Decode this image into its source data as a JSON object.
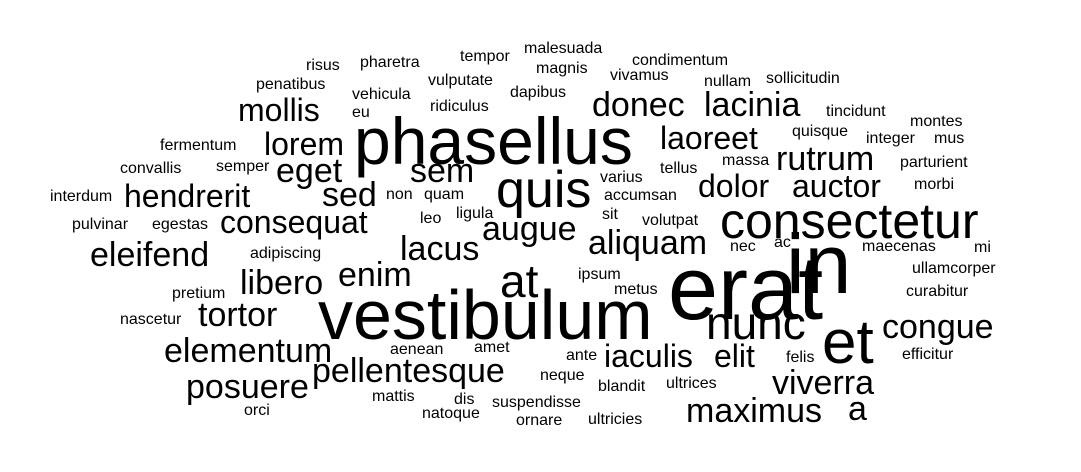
{
  "word_cloud": {
    "text_color": "#000000",
    "background_color": "#ffffff",
    "words": [
      "erat",
      "in",
      "vestibulum",
      "phasellus",
      "et",
      "consectetur",
      "nunc",
      "quis",
      "at",
      "aliquam",
      "hendrerit",
      "consequat",
      "mollis",
      "donec",
      "lacinia",
      "maximus",
      "viverra",
      "posuere",
      "pellentesque",
      "congue",
      "elementum",
      "eleifend",
      "tortor",
      "libero",
      "rutrum",
      "laoreet",
      "dolor",
      "auctor",
      "lorem",
      "eget",
      "sed",
      "sem",
      "augue",
      "lacus",
      "enim",
      "iaculis",
      "elit",
      "a",
      "risus",
      "pharetra",
      "tempor",
      "malesuada",
      "magnis",
      "condimentum",
      "vivamus",
      "nullam",
      "sollicitudin",
      "penatibus",
      "vehicula",
      "vulputate",
      "dapibus",
      "ridiculus",
      "eu",
      "fermentum",
      "convallis",
      "semper",
      "interdum",
      "non",
      "quam",
      "pulvinar",
      "egestas",
      "leo",
      "ligula",
      "adipiscing",
      "pretium",
      "nascetur",
      "ipsum",
      "metus",
      "nec",
      "ac",
      "maecenas",
      "mi",
      "ullamcorper",
      "curabitur",
      "efficitur",
      "felis",
      "ante",
      "aenean",
      "amet",
      "neque",
      "blandit",
      "ultrices",
      "mattis",
      "dis",
      "suspendisse",
      "natoque",
      "ornare",
      "ultricies",
      "orci",
      "tincidunt",
      "montes",
      "quisque",
      "integer",
      "mus",
      "massa",
      "tellus",
      "parturient",
      "morbi",
      "varius",
      "accumsan",
      "sit",
      "volutpat"
    ]
  }
}
